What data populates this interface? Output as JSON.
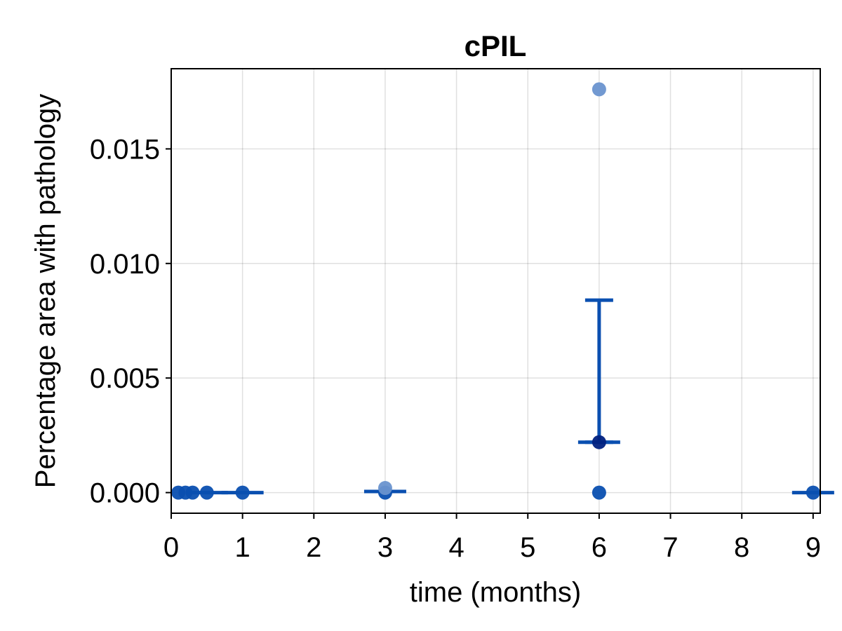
{
  "chart_data": {
    "type": "scatter",
    "title": "cPIL",
    "xlabel": "time (months)",
    "ylabel": "Percentage area with pathology",
    "xlim": [
      0,
      9.1
    ],
    "ylim": [
      -0.0009,
      0.0185
    ],
    "xticks": [
      0,
      1,
      2,
      3,
      4,
      5,
      6,
      7,
      8,
      9
    ],
    "yticks": [
      0.0,
      0.005,
      0.01,
      0.015
    ],
    "ytick_labels": [
      "0.000",
      "0.005",
      "0.010",
      "0.015"
    ],
    "grid": true,
    "points": [
      {
        "x": 0.1,
        "y": 0.0
      },
      {
        "x": 0.2,
        "y": 0.0
      },
      {
        "x": 0.3,
        "y": 0.0
      },
      {
        "x": 0.5,
        "y": 0.0
      },
      {
        "x": 1.0,
        "y": 0.0
      },
      {
        "x": 3.0,
        "y": 0.0
      },
      {
        "x": 3.0,
        "y": 0.0002
      },
      {
        "x": 6.0,
        "y": 0.0176
      },
      {
        "x": 6.0,
        "y": 0.0022
      },
      {
        "x": 6.0,
        "y": 0.0
      },
      {
        "x": 9.0,
        "y": 0.0
      }
    ],
    "means": [
      {
        "x": 0.5,
        "y": 0.0
      },
      {
        "x": 1.0,
        "y": 0.0
      },
      {
        "x": 3.0,
        "y": 5e-05
      },
      {
        "x": 6.0,
        "y": 0.0022,
        "err_high": 0.0084,
        "err_low": 0.0022
      },
      {
        "x": 9.0,
        "y": 0.0
      }
    ],
    "colors": {
      "point_light": "#6a94cf",
      "point": "#0a4fb0",
      "point_dark": "#002080",
      "errorbar": "#0a4fb0"
    }
  }
}
